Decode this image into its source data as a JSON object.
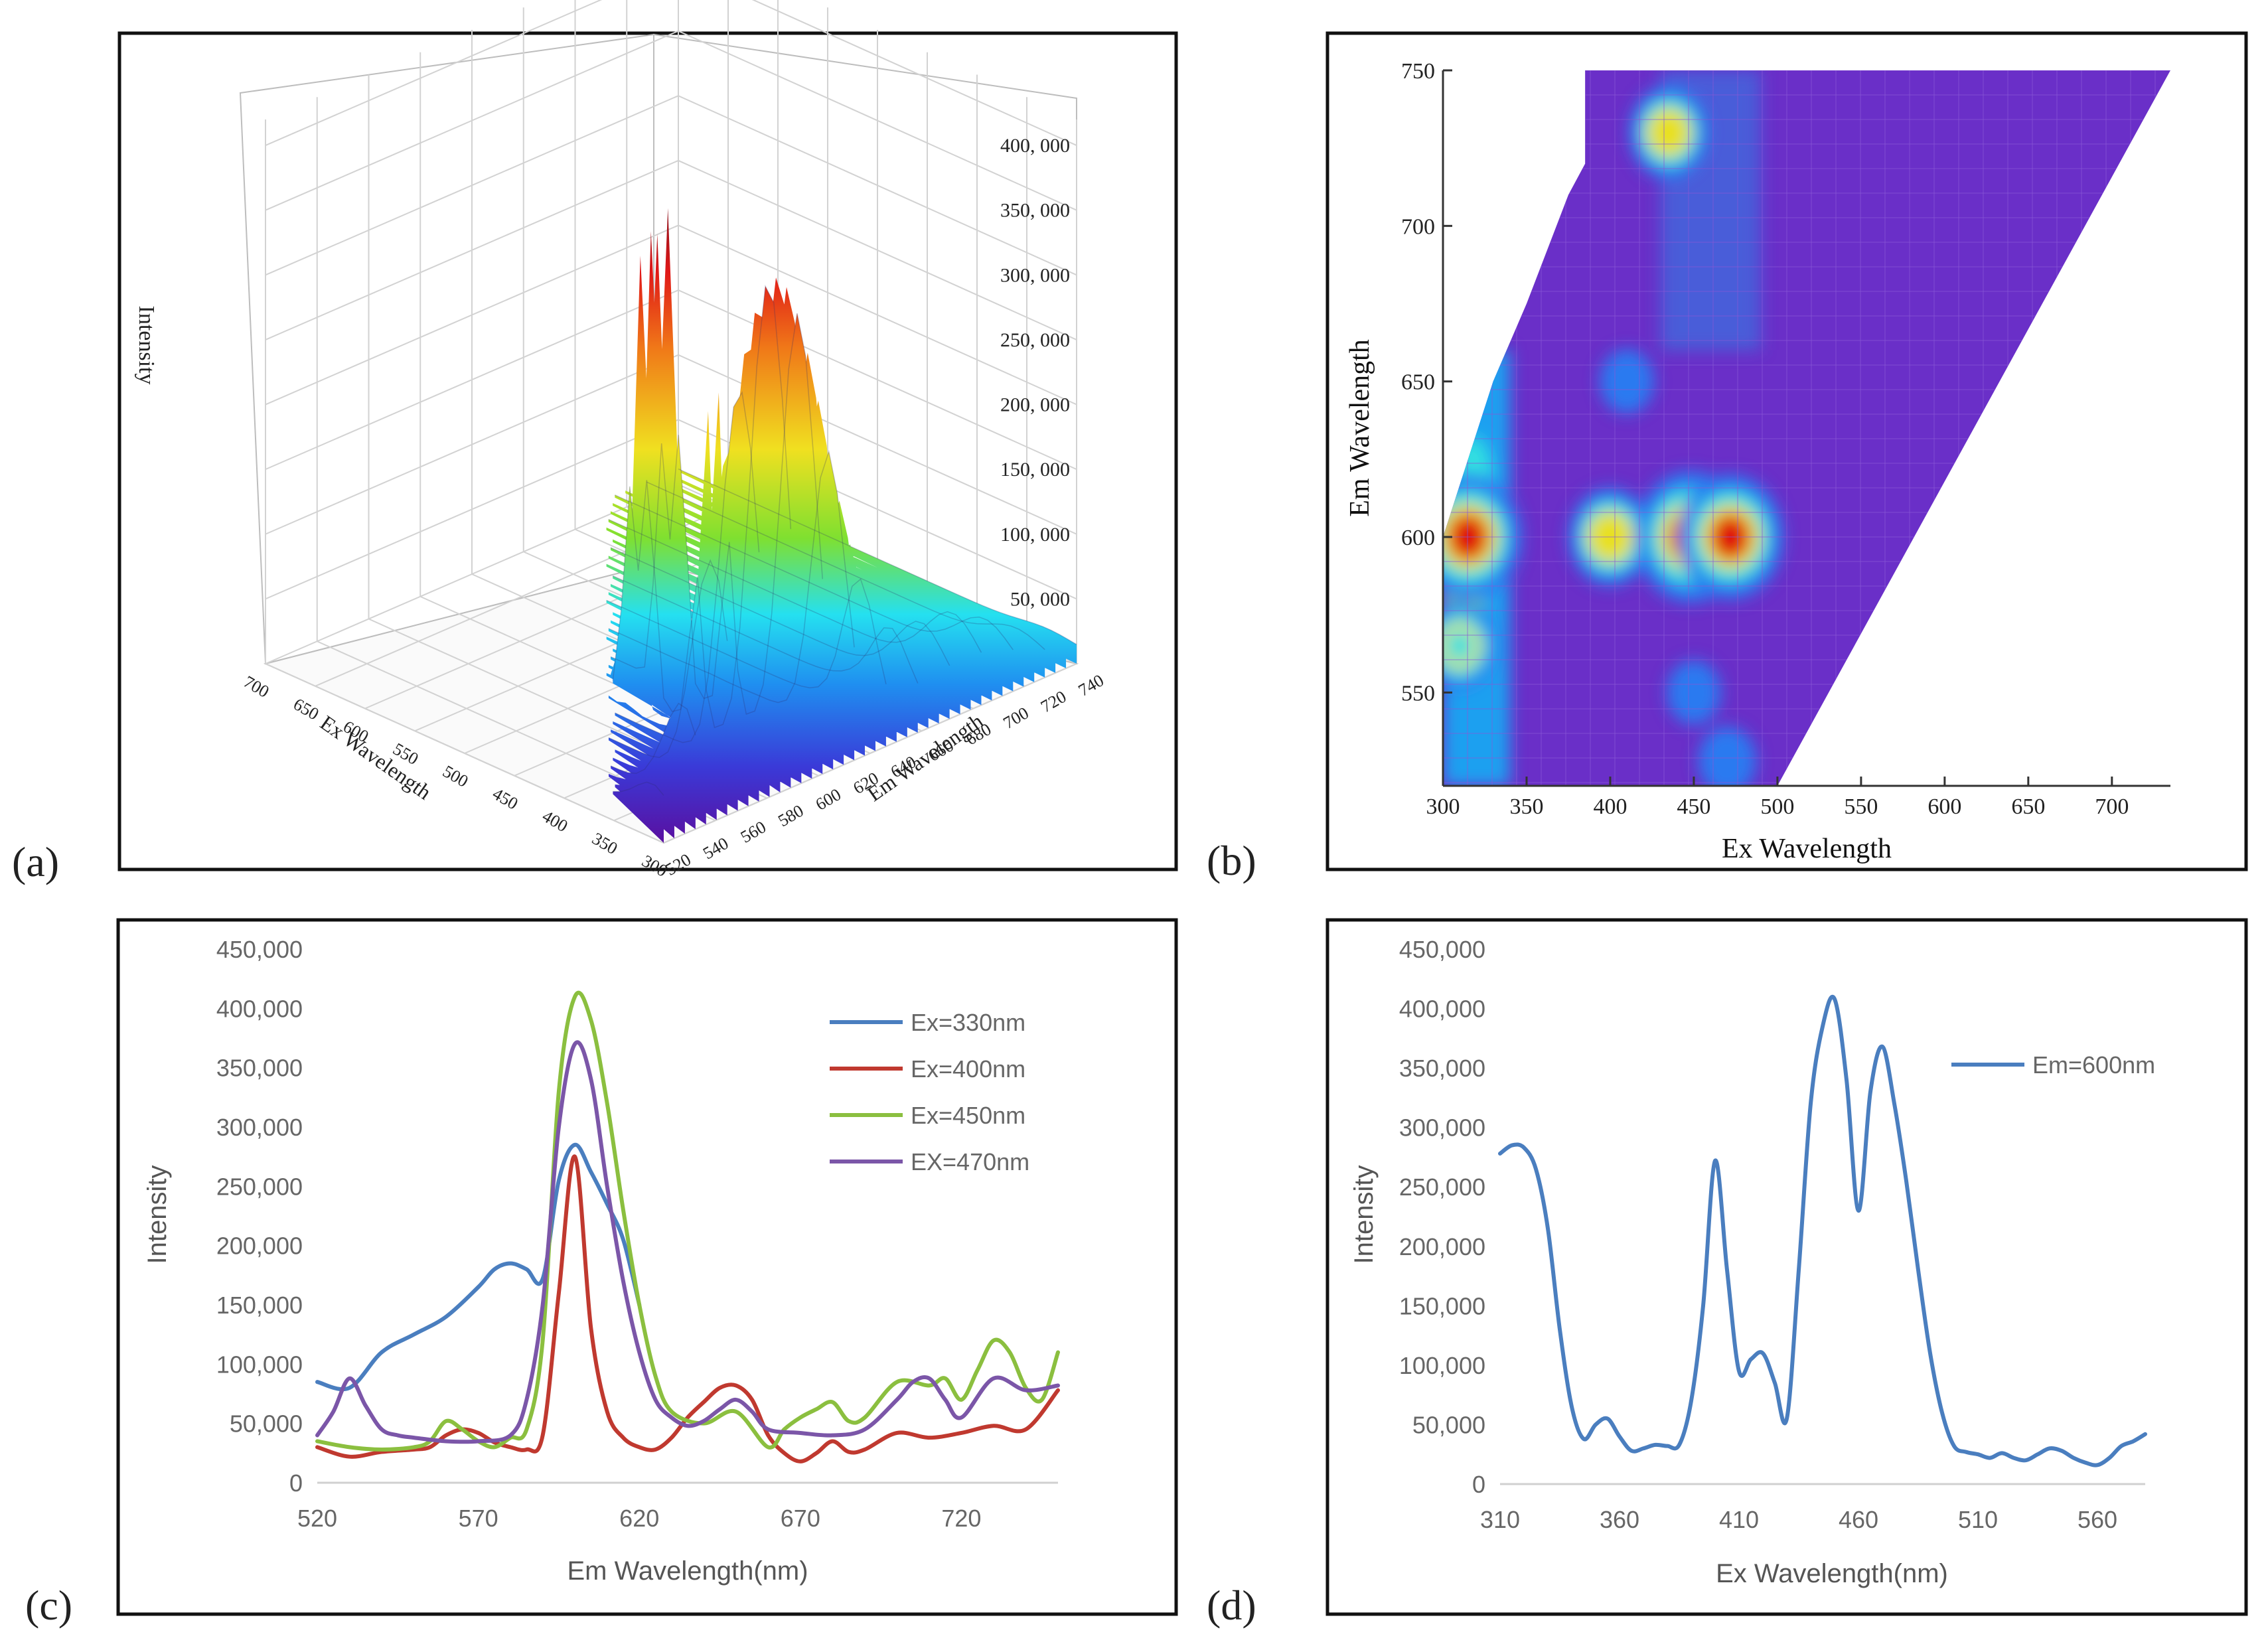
{
  "panel_labels": {
    "a": "(a)",
    "b": "(b)",
    "c": "(c)",
    "d": "(d)"
  },
  "chart_data": [
    {
      "id": "a",
      "type": "surface3d",
      "title": "",
      "zlabel": "Intensity",
      "xlabel": "Ex Wavelength",
      "ylabel": "Em Wavelength",
      "zticks": [
        "50, 000",
        "100, 000",
        "150, 000",
        "200, 000",
        "250, 000",
        "300, 000",
        "350, 000",
        "400, 000"
      ],
      "zlim": [
        0,
        420000
      ],
      "xticks": [
        "300",
        "350",
        "400",
        "450",
        "500",
        "550",
        "600",
        "650",
        "700"
      ],
      "yticks": [
        "520",
        "540",
        "560",
        "580",
        "600",
        "620",
        "640",
        "660",
        "680",
        "700",
        "720",
        "740"
      ],
      "peaks": [
        {
          "ex": 330,
          "em": 600,
          "intensity": 285000
        },
        {
          "ex": 400,
          "em": 600,
          "intensity": 275000
        },
        {
          "ex": 450,
          "em": 600,
          "intensity": 410000
        },
        {
          "ex": 470,
          "em": 600,
          "intensity": 370000
        },
        {
          "ex": 310,
          "em": 580,
          "intensity": 185000
        }
      ]
    },
    {
      "id": "b",
      "type": "heatmap",
      "xlabel": "Ex Wavelength",
      "ylabel": "Em Wavelength",
      "xticks": [
        300,
        350,
        400,
        450,
        500,
        550,
        600,
        650,
        700
      ],
      "yticks": [
        550,
        600,
        650,
        700,
        750
      ],
      "xlim": [
        300,
        735
      ],
      "ylim": [
        520,
        750
      ],
      "hotspots": [
        {
          "ex": 315,
          "em": 600,
          "level": 0.95
        },
        {
          "ex": 310,
          "em": 565,
          "level": 0.55
        },
        {
          "ex": 400,
          "em": 600,
          "level": 0.65
        },
        {
          "ex": 448,
          "em": 600,
          "level": 1.0
        },
        {
          "ex": 472,
          "em": 600,
          "level": 0.93
        },
        {
          "ex": 435,
          "em": 730,
          "level": 0.6
        },
        {
          "ex": 410,
          "em": 650,
          "level": 0.3
        },
        {
          "ex": 450,
          "em": 550,
          "level": 0.3
        },
        {
          "ex": 470,
          "em": 528,
          "level": 0.35
        }
      ]
    },
    {
      "id": "c",
      "type": "line",
      "xlabel": "Em Wavelength(nm)",
      "ylabel": "Intensity",
      "xlim": [
        520,
        750
      ],
      "ylim": [
        0,
        450000
      ],
      "xticks": [
        520,
        570,
        620,
        670,
        720
      ],
      "yticks": [
        0,
        50000,
        100000,
        150000,
        200000,
        250000,
        300000,
        350000,
        400000,
        450000
      ],
      "ytick_labels": [
        "0",
        "50,000",
        "100,000",
        "150,000",
        "200,000",
        "250,000",
        "300,000",
        "350,000",
        "400,000",
        "450,000"
      ],
      "legend_position": "top-right",
      "series": [
        {
          "name": "Ex=330nm",
          "color": "#4a7ebf",
          "x": [
            520,
            530,
            540,
            550,
            560,
            570,
            575,
            580,
            585,
            590,
            595,
            600,
            605,
            610,
            615,
            620
          ],
          "y": [
            85000,
            80000,
            110000,
            125000,
            140000,
            165000,
            180000,
            185000,
            180000,
            172000,
            255000,
            285000,
            262000,
            235000,
            205000,
            150000
          ]
        },
        {
          "name": "Ex=400nm",
          "color": "#c0392f",
          "x": [
            520,
            530,
            540,
            550,
            555,
            560,
            565,
            570,
            575,
            580,
            585,
            590,
            595,
            600,
            605,
            610,
            615,
            620,
            625,
            630,
            635,
            640,
            645,
            650,
            655,
            660,
            665,
            670,
            675,
            680,
            685,
            690,
            700,
            710,
            720,
            730,
            740,
            750
          ],
          "y": [
            30000,
            22000,
            26000,
            28000,
            30000,
            40000,
            45000,
            42000,
            34000,
            30000,
            28000,
            40000,
            160000,
            275000,
            130000,
            60000,
            38000,
            30000,
            28000,
            38000,
            55000,
            68000,
            80000,
            82000,
            70000,
            40000,
            25000,
            18000,
            25000,
            35000,
            26000,
            28000,
            42000,
            38000,
            42000,
            48000,
            45000,
            78000
          ]
        },
        {
          "name": "Ex=450nm",
          "color": "#8bbf3f",
          "x": [
            520,
            530,
            540,
            550,
            555,
            560,
            565,
            570,
            575,
            580,
            585,
            590,
            595,
            600,
            605,
            610,
            615,
            620,
            625,
            630,
            640,
            650,
            660,
            665,
            670,
            675,
            680,
            685,
            690,
            700,
            710,
            715,
            720,
            725,
            730,
            735,
            740,
            745,
            750
          ],
          "y": [
            35000,
            30000,
            28000,
            30000,
            35000,
            52000,
            45000,
            35000,
            30000,
            38000,
            45000,
            120000,
            330000,
            410000,
            390000,
            320000,
            230000,
            150000,
            90000,
            60000,
            50000,
            60000,
            30000,
            45000,
            55000,
            62000,
            68000,
            52000,
            55000,
            85000,
            82000,
            88000,
            70000,
            95000,
            120000,
            110000,
            80000,
            70000,
            110000
          ]
        },
        {
          "name": "EX=470nm",
          "color": "#7b56a8",
          "x": [
            520,
            525,
            530,
            535,
            540,
            545,
            550,
            560,
            570,
            580,
            585,
            590,
            595,
            600,
            605,
            610,
            615,
            620,
            625,
            630,
            635,
            640,
            645,
            650,
            655,
            660,
            670,
            680,
            690,
            700,
            705,
            710,
            715,
            720,
            730,
            740,
            750
          ],
          "y": [
            40000,
            60000,
            88000,
            65000,
            45000,
            40000,
            38000,
            35000,
            35000,
            40000,
            70000,
            150000,
            300000,
            370000,
            340000,
            250000,
            170000,
            110000,
            70000,
            55000,
            48000,
            52000,
            62000,
            70000,
            60000,
            45000,
            42000,
            40000,
            45000,
            70000,
            85000,
            88000,
            70000,
            55000,
            88000,
            78000,
            82000
          ]
        }
      ]
    },
    {
      "id": "d",
      "type": "line",
      "xlabel": "Ex Wavelength(nm)",
      "ylabel": "Intensity",
      "xlim": [
        310,
        580
      ],
      "ylim": [
        0,
        450000
      ],
      "xticks": [
        310,
        360,
        410,
        460,
        510,
        560
      ],
      "yticks": [
        0,
        50000,
        100000,
        150000,
        200000,
        250000,
        300000,
        350000,
        400000,
        450000
      ],
      "ytick_labels": [
        "0",
        "50,000",
        "100,000",
        "150,000",
        "200,000",
        "250,000",
        "300,000",
        "350,000",
        "400,000",
        "450,000"
      ],
      "legend_position": "top-right",
      "series": [
        {
          "name": "Em=600nm",
          "color": "#4a7ebf",
          "x": [
            310,
            315,
            320,
            325,
            330,
            335,
            340,
            345,
            350,
            355,
            360,
            365,
            370,
            375,
            380,
            385,
            390,
            395,
            400,
            405,
            410,
            415,
            420,
            425,
            430,
            435,
            440,
            445,
            450,
            455,
            460,
            465,
            470,
            475,
            480,
            485,
            490,
            495,
            500,
            505,
            510,
            515,
            520,
            525,
            530,
            535,
            540,
            545,
            550,
            555,
            560,
            565,
            570,
            575,
            580
          ],
          "y": [
            278000,
            285000,
            283000,
            265000,
            215000,
            130000,
            65000,
            38000,
            50000,
            55000,
            40000,
            28000,
            30000,
            33000,
            32000,
            33000,
            70000,
            150000,
            272000,
            180000,
            95000,
            105000,
            110000,
            85000,
            55000,
            180000,
            320000,
            385000,
            408000,
            340000,
            230000,
            330000,
            368000,
            320000,
            255000,
            180000,
            110000,
            60000,
            32000,
            27000,
            25000,
            22000,
            26000,
            22000,
            20000,
            25000,
            30000,
            28000,
            22000,
            18000,
            16000,
            22000,
            32000,
            36000,
            42000
          ]
        }
      ]
    }
  ]
}
